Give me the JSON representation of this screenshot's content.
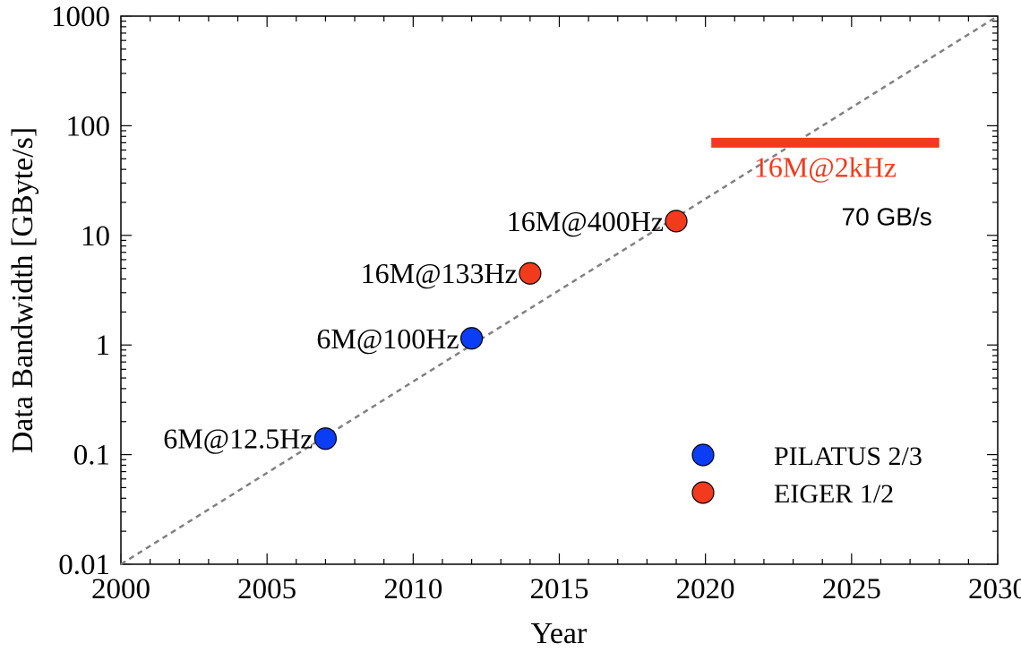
{
  "chart_data": {
    "type": "scatter",
    "xlabel": "Year",
    "ylabel": "Data Bandwidth [GByte/s]",
    "xlim": [
      2000,
      2030
    ],
    "ylim": [
      0.01,
      1000
    ],
    "yscale": "log",
    "grid": false,
    "legend_position": "bottom-right",
    "x_ticks": [
      "2000",
      "2005",
      "2010",
      "2015",
      "2020",
      "2025",
      "2030"
    ],
    "y_ticks": [
      "0.01",
      "0.1",
      "1",
      "10",
      "100",
      "1000"
    ],
    "colors": {
      "PILATUS": "#0b3df5",
      "EIGER": "#f23a1c",
      "trend": "#808080"
    },
    "series": [
      {
        "name": "PILATUS 2/3",
        "points": [
          {
            "x": 2007,
            "y": 0.14,
            "label": "6M@12.5Hz"
          },
          {
            "x": 2012,
            "y": 1.15,
            "label": "6M@100Hz"
          }
        ]
      },
      {
        "name": "EIGER 1/2",
        "points": [
          {
            "x": 2014,
            "y": 4.5,
            "label": "16M@133Hz"
          },
          {
            "x": 2019,
            "y": 13.5,
            "label": "16M@400Hz"
          }
        ]
      }
    ],
    "trend_line": {
      "from": {
        "x": 2000,
        "y": 0.01
      },
      "to": {
        "x": 2030,
        "y": 1000
      },
      "style": "dashed"
    },
    "range_bar": {
      "x_start": 2020.2,
      "x_end": 2028,
      "y": 70,
      "label": "16M@2kHz",
      "note": "70 GB/s"
    }
  }
}
